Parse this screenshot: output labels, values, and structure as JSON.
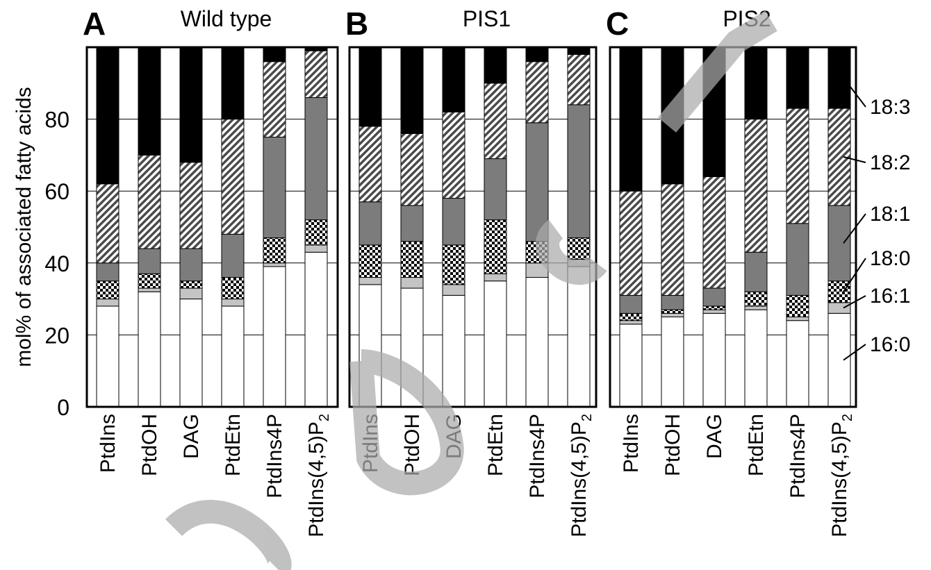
{
  "chart_data": {
    "type": "bar",
    "stacked": true,
    "ylabel": "mol% of associated fatty acids",
    "ylim": [
      0,
      100
    ],
    "yticks": [
      0,
      20,
      40,
      60,
      80
    ],
    "grid": true,
    "categories": [
      "PtdIns",
      "PtdOH",
      "DAG",
      "PtdEtn",
      "PtdIns4P",
      "PtdIns(4,5)P"
    ],
    "category_subscript": [
      "",
      "",
      "",
      "",
      "",
      "2"
    ],
    "segments": [
      "16:0",
      "16:1",
      "18:0",
      "18:1",
      "18:2",
      "18:3"
    ],
    "segment_colors": {
      "16:0": "#ffffff",
      "16:1": "#c4c4c4",
      "18:0": "checker",
      "18:1": "#7c7c7c",
      "18:2": "hatch",
      "18:3": "#000000"
    },
    "legend_placement": "right",
    "panels": [
      {
        "letter": "A",
        "title": "Wild type",
        "bars": [
          {
            "16:0": 28,
            "16:1": 2,
            "18:0": 5,
            "18:1": 5,
            "18:2": 22,
            "18:3": 38
          },
          {
            "16:0": 32,
            "16:1": 1,
            "18:0": 4,
            "18:1": 7,
            "18:2": 26,
            "18:3": 30
          },
          {
            "16:0": 30,
            "16:1": 3,
            "18:0": 2,
            "18:1": 9,
            "18:2": 24,
            "18:3": 32
          },
          {
            "16:0": 28,
            "16:1": 2,
            "18:0": 6,
            "18:1": 12,
            "18:2": 32,
            "18:3": 20
          },
          {
            "16:0": 39,
            "16:1": 1,
            "18:0": 7,
            "18:1": 28,
            "18:2": 21,
            "18:3": 4
          },
          {
            "16:0": 43,
            "16:1": 2,
            "18:0": 7,
            "18:1": 34,
            "18:2": 13,
            "18:3": 1
          }
        ]
      },
      {
        "letter": "B",
        "title": "PIS1",
        "bars": [
          {
            "16:0": 34,
            "16:1": 2,
            "18:0": 9,
            "18:1": 12,
            "18:2": 21,
            "18:3": 22
          },
          {
            "16:0": 33,
            "16:1": 3,
            "18:0": 10,
            "18:1": 10,
            "18:2": 20,
            "18:3": 24
          },
          {
            "16:0": 31,
            "16:1": 3,
            "18:0": 11,
            "18:1": 13,
            "18:2": 24,
            "18:3": 18
          },
          {
            "16:0": 35,
            "16:1": 2,
            "18:0": 15,
            "18:1": 17,
            "18:2": 21,
            "18:3": 10
          },
          {
            "16:0": 36,
            "16:1": 4,
            "18:0": 6,
            "18:1": 33,
            "18:2": 17,
            "18:3": 4
          },
          {
            "16:0": 39,
            "16:1": 2,
            "18:0": 6,
            "18:1": 37,
            "18:2": 14,
            "18:3": 2
          }
        ]
      },
      {
        "letter": "C",
        "title": "PIS2",
        "bars": [
          {
            "16:0": 23,
            "16:1": 1,
            "18:0": 2,
            "18:1": 5,
            "18:2": 29,
            "18:3": 40
          },
          {
            "16:0": 25,
            "16:1": 1,
            "18:0": 1,
            "18:1": 4,
            "18:2": 31,
            "18:3": 38
          },
          {
            "16:0": 26,
            "16:1": 1,
            "18:0": 1,
            "18:1": 5,
            "18:2": 31,
            "18:3": 36
          },
          {
            "16:0": 27,
            "16:1": 1,
            "18:0": 4,
            "18:1": 11,
            "18:2": 37,
            "18:3": 20
          },
          {
            "16:0": 24,
            "16:1": 1,
            "18:0": 6,
            "18:1": 20,
            "18:2": 32,
            "18:3": 17
          },
          {
            "16:0": 26,
            "16:1": 3,
            "18:0": 6,
            "18:1": 21,
            "18:2": 27,
            "18:3": 17
          }
        ]
      }
    ]
  }
}
